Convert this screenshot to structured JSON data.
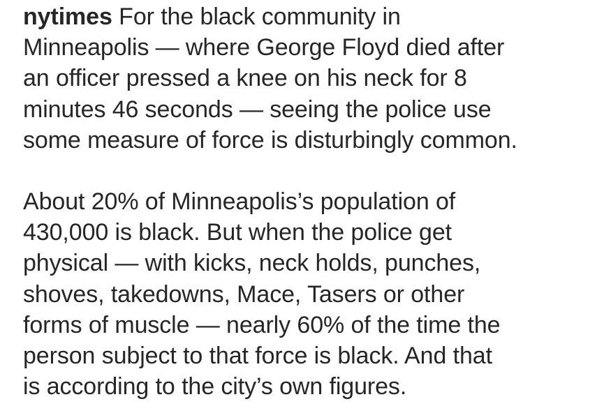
{
  "post": {
    "username": "nytimes",
    "paragraphs": [
      "For the black community in\nMinneapolis — where George Floyd died after\nan officer pressed a knee on his neck for 8\nminutes 46 seconds — seeing the police use\nsome measure of force is disturbingly common.",
      "About 20% of Minneapolis’s population of\n430,000 is black. But when the police get\nphysical — with kicks, neck holds, punches,\nshoves, takedowns, Mace, Tasers or other\nforms of muscle — nearly 60% of the time the\nperson subject to that force is black. And that\nis according to the city’s own figures."
    ]
  }
}
